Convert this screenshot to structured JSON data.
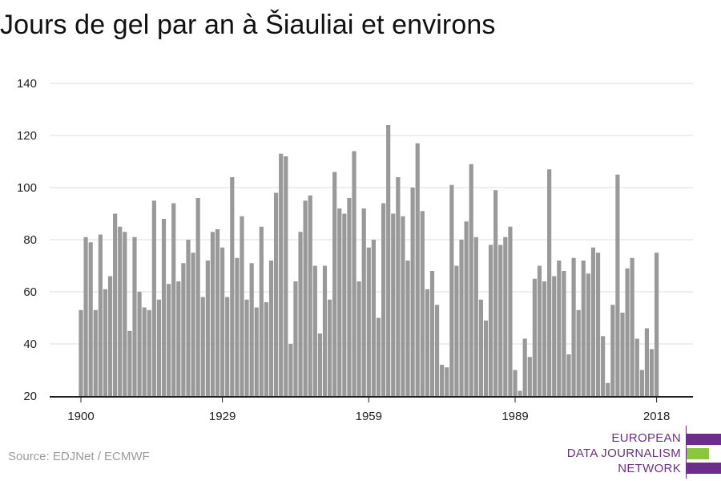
{
  "chart_data": {
    "type": "bar",
    "title": "Jours de gel par an à Šiauliai et environs",
    "xlabel": "",
    "ylabel": "",
    "ylim": [
      20,
      140
    ],
    "yticks": [
      20,
      40,
      60,
      80,
      100,
      120,
      140
    ],
    "xticks": [
      1900,
      1929,
      1959,
      1989,
      2018
    ],
    "grid": true,
    "bar_color": "#999999",
    "x": [
      1900,
      1901,
      1902,
      1903,
      1904,
      1905,
      1906,
      1907,
      1908,
      1909,
      1910,
      1911,
      1912,
      1913,
      1914,
      1915,
      1916,
      1917,
      1918,
      1919,
      1920,
      1921,
      1922,
      1923,
      1924,
      1925,
      1926,
      1927,
      1928,
      1929,
      1930,
      1931,
      1932,
      1933,
      1934,
      1935,
      1936,
      1937,
      1938,
      1939,
      1940,
      1941,
      1942,
      1943,
      1944,
      1945,
      1946,
      1947,
      1948,
      1949,
      1950,
      1951,
      1952,
      1953,
      1954,
      1955,
      1956,
      1957,
      1958,
      1959,
      1960,
      1961,
      1962,
      1963,
      1964,
      1965,
      1966,
      1967,
      1968,
      1969,
      1970,
      1971,
      1972,
      1973,
      1974,
      1975,
      1976,
      1977,
      1978,
      1979,
      1980,
      1981,
      1982,
      1983,
      1984,
      1985,
      1986,
      1987,
      1988,
      1989,
      1990,
      1991,
      1992,
      1993,
      1994,
      1995,
      1996,
      1997,
      1998,
      1999,
      2000,
      2001,
      2002,
      2003,
      2004,
      2005,
      2006,
      2007,
      2008,
      2009,
      2010,
      2011,
      2012,
      2013,
      2014,
      2015,
      2016,
      2017,
      2018
    ],
    "values": [
      53,
      81,
      79,
      53,
      82,
      61,
      66,
      90,
      85,
      83,
      45,
      81,
      60,
      54,
      53,
      95,
      57,
      88,
      63,
      94,
      64,
      71,
      80,
      75,
      96,
      58,
      72,
      83,
      84,
      77,
      58,
      104,
      73,
      89,
      57,
      71,
      54,
      85,
      56,
      72,
      98,
      113,
      112,
      40,
      64,
      83,
      95,
      97,
      70,
      44,
      70,
      57,
      106,
      92,
      90,
      96,
      114,
      64,
      92,
      77,
      80,
      50,
      94,
      124,
      90,
      104,
      89,
      72,
      100,
      117,
      91,
      61,
      68,
      55,
      32,
      31,
      101,
      70,
      80,
      87,
      109,
      81,
      57,
      49,
      78,
      99,
      78,
      81,
      85,
      30,
      22,
      42,
      35,
      65,
      70,
      64,
      107,
      66,
      72,
      68,
      36,
      73,
      53,
      72,
      67,
      77,
      75,
      43,
      25,
      55,
      105,
      52,
      69,
      73,
      42,
      30,
      46,
      38,
      75
    ]
  },
  "source": "Source: EDJNet / ECMWF",
  "logo": {
    "line1": "EUROPEAN",
    "line2": "DATA JOURNALISM",
    "line3": "NETWORK",
    "purple": "#6d2e8b",
    "green": "#8cc63f"
  }
}
